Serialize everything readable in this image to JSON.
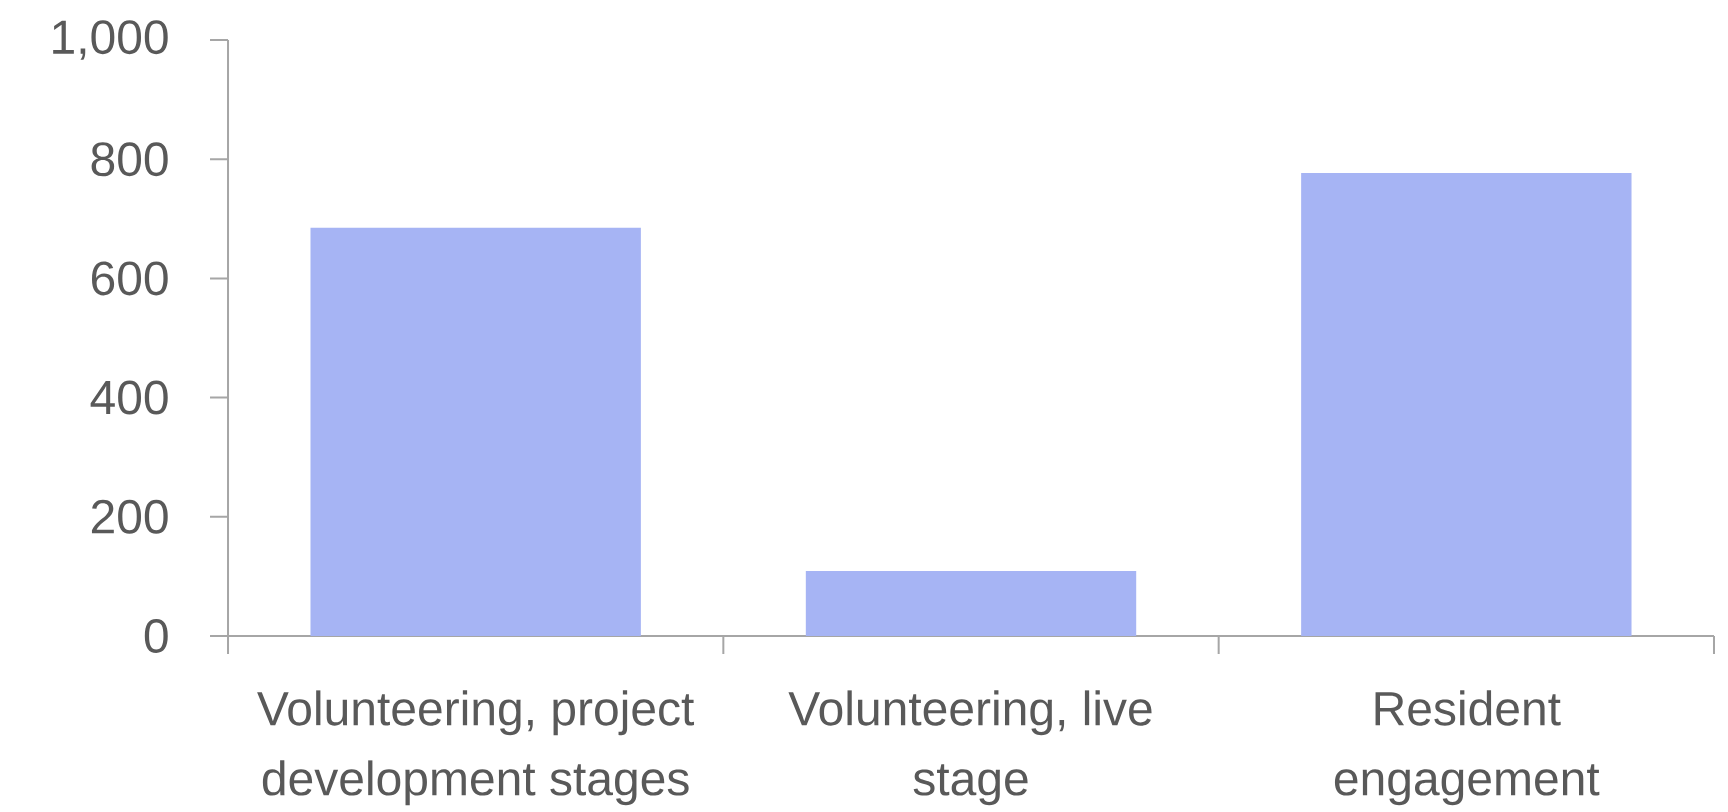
{
  "chart_data": {
    "type": "bar",
    "categories": [
      "Volunteering, project development stages",
      "Volunteering, live stage",
      "Resident engagement"
    ],
    "values": [
      685,
      109,
      777
    ],
    "color": "#a6b4f4",
    "ylim": [
      0,
      1000
    ],
    "yticks": [
      0,
      200,
      400,
      600,
      800,
      {
        "value": 1000,
        "label": "1,000"
      }
    ]
  }
}
